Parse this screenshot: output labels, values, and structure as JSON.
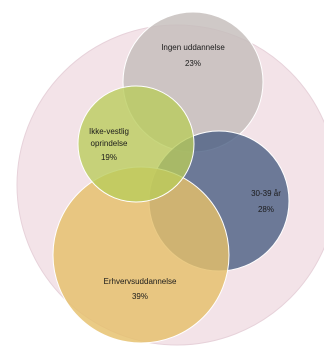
{
  "diagram": {
    "type": "euler-circles",
    "colors": {
      "background_circle": "#f3e3e8",
      "background_circle_stroke": "#e7d2da",
      "ingen": "#c4bdbb",
      "ikke_vestlig": "#b9cc5a",
      "alder": "#4e6185",
      "erhverv": "#e5c06a"
    },
    "circles": [
      {
        "id": "ingen",
        "label": "Ingen uddannelse",
        "value": "23%"
      },
      {
        "id": "ikke_vestlig",
        "label_line1": "Ikke-vestlig",
        "label_line2": "oprindelse",
        "value": "19%"
      },
      {
        "id": "alder",
        "label": "30-39 år",
        "value": "28%"
      },
      {
        "id": "erhverv",
        "label": "Erhvervsuddannelse",
        "value": "39%"
      }
    ]
  }
}
